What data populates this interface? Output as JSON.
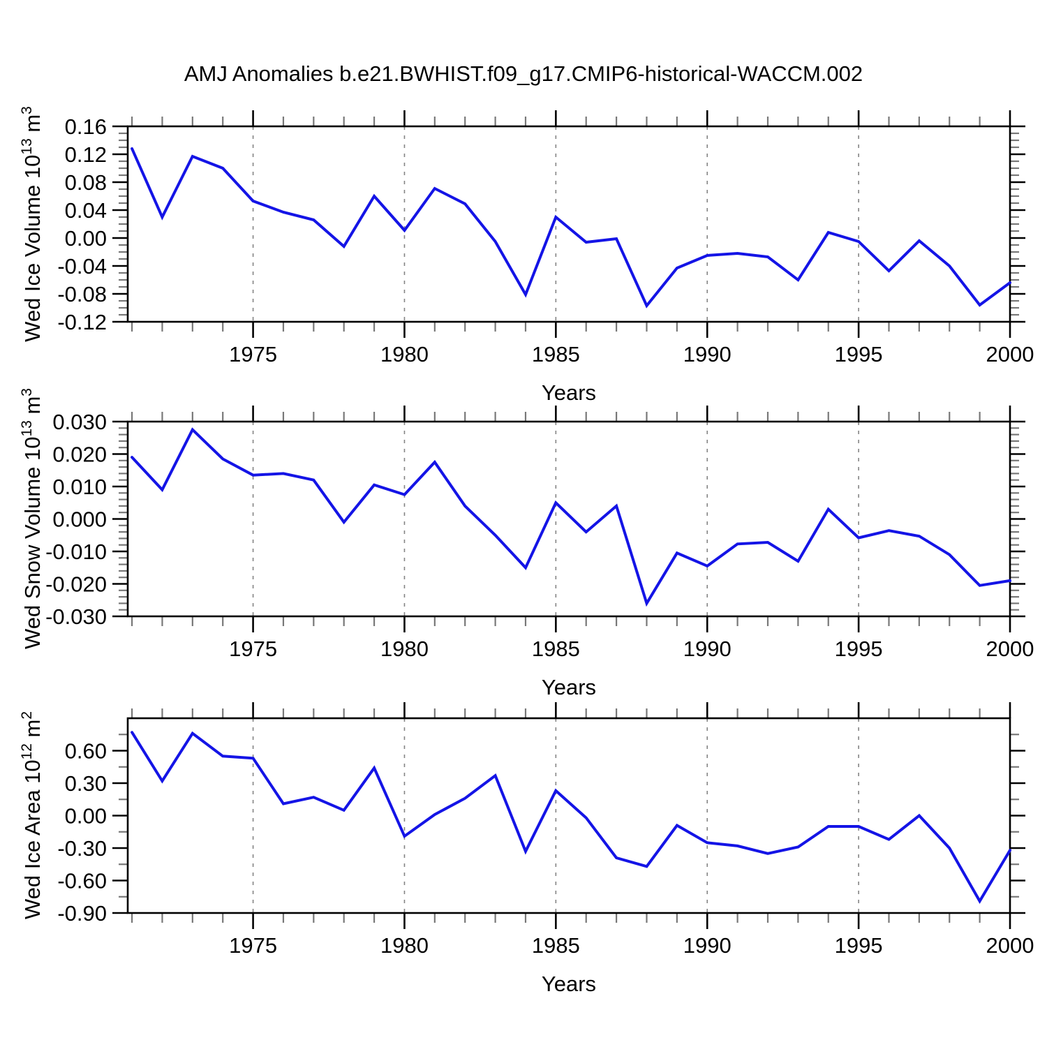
{
  "title": "AMJ Anomalies b.e21.BWHIST.f09_g17.CMIP6-historical-WACCM.002",
  "colors": {
    "line": "#1414e6",
    "axis": "#000000",
    "grid": "#848484",
    "minor_tick": "#787878",
    "tick_label": "#000000",
    "background": "#ffffff"
  },
  "chart_data": [
    {
      "type": "line",
      "name": "ice-volume",
      "ylabel_text": "Wed Ice Volume 10^13 m^3",
      "ylabel_parts": [
        {
          "t": "Wed Ice Volume 10"
        },
        {
          "t": "13",
          "sup": true
        },
        {
          "t": " m"
        },
        {
          "t": "3",
          "sup": true
        }
      ],
      "xlabel": "Years",
      "x": [
        1971,
        1972,
        1973,
        1974,
        1975,
        1976,
        1977,
        1978,
        1979,
        1980,
        1981,
        1982,
        1983,
        1984,
        1985,
        1986,
        1987,
        1988,
        1989,
        1990,
        1991,
        1992,
        1993,
        1994,
        1995,
        1996,
        1997,
        1998,
        1999,
        2000
      ],
      "values": [
        0.128,
        0.03,
        0.117,
        0.1,
        0.053,
        0.037,
        0.026,
        -0.012,
        0.06,
        0.011,
        0.071,
        0.049,
        -0.005,
        -0.081,
        0.03,
        -0.006,
        -0.001,
        -0.097,
        -0.043,
        -0.025,
        -0.022,
        -0.027,
        -0.06,
        0.008,
        -0.005,
        -0.047,
        -0.004,
        -0.04,
        -0.096,
        -0.064
      ],
      "ylim": [
        -0.12,
        0.16
      ],
      "ytick_labels": [
        "0.16",
        "0.12",
        "0.08",
        "0.04",
        "0.00",
        "-0.04",
        "-0.08",
        "-0.12"
      ],
      "yminor_step": 0.01,
      "xlim": [
        1970.86,
        2000
      ],
      "xtick_labels": [
        "1975",
        "1980",
        "1985",
        "1990",
        "1995",
        "2000"
      ],
      "grid_years": [
        1975,
        1980,
        1985,
        1990,
        1995
      ],
      "grid_on": true,
      "legend": "none"
    },
    {
      "type": "line",
      "name": "snow-volume",
      "ylabel_text": "Wed Snow Volume 10^13 m^3",
      "ylabel_parts": [
        {
          "t": "Wed Snow Volume 10"
        },
        {
          "t": "13",
          "sup": true
        },
        {
          "t": " m"
        },
        {
          "t": "3",
          "sup": true
        }
      ],
      "xlabel": "Years",
      "x": [
        1971,
        1972,
        1973,
        1974,
        1975,
        1976,
        1977,
        1978,
        1979,
        1980,
        1981,
        1982,
        1983,
        1984,
        1985,
        1986,
        1987,
        1988,
        1989,
        1990,
        1991,
        1992,
        1993,
        1994,
        1995,
        1996,
        1997,
        1998,
        1999,
        2000
      ],
      "values": [
        0.019,
        0.009,
        0.0275,
        0.0185,
        0.0135,
        0.014,
        0.012,
        -0.001,
        0.0105,
        0.0075,
        0.0175,
        0.004,
        -0.005,
        -0.015,
        0.005,
        -0.004,
        0.004,
        -0.026,
        -0.0105,
        -0.0145,
        -0.0077,
        -0.0072,
        -0.013,
        0.003,
        -0.0058,
        -0.0036,
        -0.0053,
        -0.011,
        -0.0205,
        -0.019
      ],
      "ylim": [
        -0.03,
        0.03
      ],
      "ytick_labels": [
        "0.030",
        "0.020",
        "0.010",
        "0.000",
        "-0.010",
        "-0.020",
        "-0.030"
      ],
      "yminor_step": 0.002,
      "xlim": [
        1970.86,
        2000
      ],
      "xtick_labels": [
        "1975",
        "1980",
        "1985",
        "1990",
        "1995",
        "2000"
      ],
      "grid_years": [
        1975,
        1980,
        1985,
        1990,
        1995
      ],
      "grid_on": true,
      "legend": "none"
    },
    {
      "type": "line",
      "name": "ice-area",
      "ylabel_text": "Wed Ice Area 10^12 m^2",
      "ylabel_parts": [
        {
          "t": "Wed Ice Area 10"
        },
        {
          "t": "12",
          "sup": true
        },
        {
          "t": " m"
        },
        {
          "t": "2",
          "sup": true
        }
      ],
      "xlabel": "Years",
      "x": [
        1971,
        1972,
        1973,
        1974,
        1975,
        1976,
        1977,
        1978,
        1979,
        1980,
        1981,
        1982,
        1983,
        1984,
        1985,
        1986,
        1987,
        1988,
        1989,
        1990,
        1991,
        1992,
        1993,
        1994,
        1995,
        1996,
        1997,
        1998,
        1999,
        2000
      ],
      "values": [
        0.77,
        0.32,
        0.76,
        0.55,
        0.53,
        0.11,
        0.17,
        0.05,
        0.44,
        -0.19,
        0.01,
        0.16,
        0.37,
        -0.33,
        0.23,
        -0.02,
        -0.39,
        -0.47,
        -0.09,
        -0.25,
        -0.28,
        -0.35,
        -0.29,
        -0.1,
        -0.1,
        -0.22,
        0.0,
        -0.3,
        -0.79,
        -0.32
      ],
      "ylim": [
        -0.9,
        0.9
      ],
      "ytick_labels": [
        "0.60",
        "0.30",
        "0.00",
        "-0.30",
        "-0.60",
        "-0.90"
      ],
      "yminor_step": 0.15,
      "xlim": [
        1970.86,
        2000
      ],
      "xtick_labels": [
        "1975",
        "1980",
        "1985",
        "1990",
        "1995",
        "2000"
      ],
      "grid_years": [
        1975,
        1980,
        1985,
        1990,
        1995
      ],
      "grid_on": true,
      "legend": "none"
    }
  ]
}
